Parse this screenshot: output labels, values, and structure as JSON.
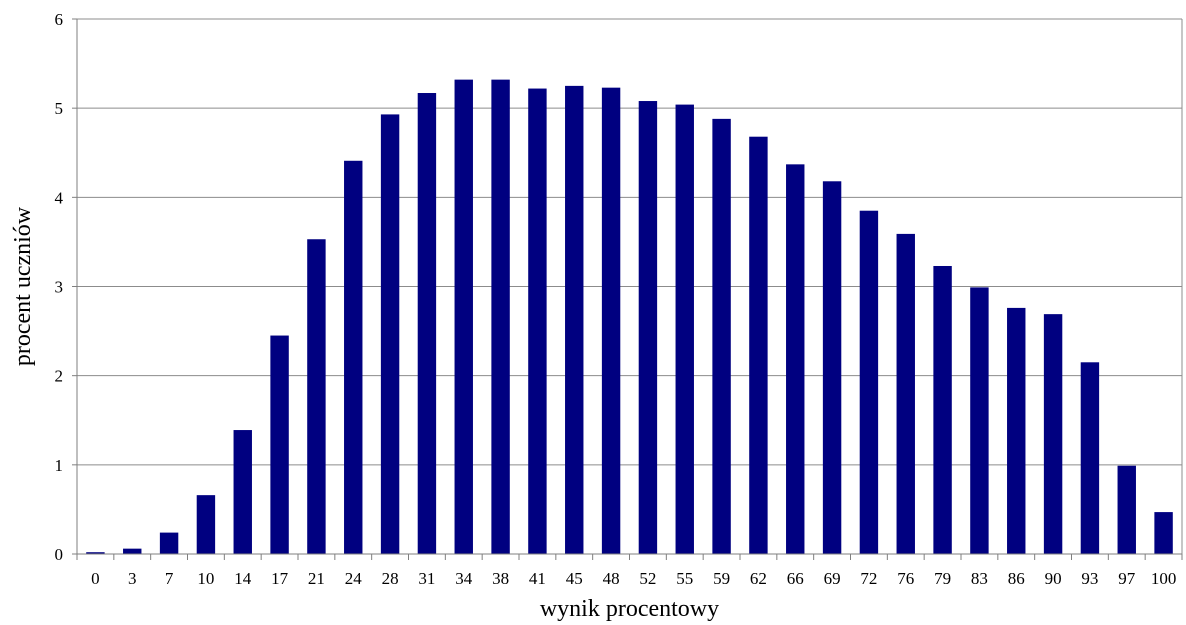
{
  "chart_data": {
    "type": "bar",
    "title": "",
    "xlabel": "wynik procentowy",
    "ylabel": "procent uczniów",
    "ylim": [
      0,
      6
    ],
    "yticks": [
      0,
      1,
      2,
      3,
      4,
      5,
      6
    ],
    "grid": true,
    "legend": "none",
    "bar_color": "#000080",
    "categories": [
      "0",
      "3",
      "7",
      "10",
      "14",
      "17",
      "21",
      "24",
      "28",
      "31",
      "34",
      "38",
      "41",
      "45",
      "48",
      "52",
      "55",
      "59",
      "62",
      "66",
      "69",
      "72",
      "76",
      "79",
      "83",
      "86",
      "90",
      "93",
      "97",
      "100"
    ],
    "values": [
      0.02,
      0.06,
      0.24,
      0.66,
      1.39,
      2.45,
      3.53,
      4.41,
      4.93,
      5.17,
      5.32,
      5.32,
      5.22,
      5.25,
      5.23,
      5.08,
      5.04,
      4.88,
      4.68,
      4.37,
      4.18,
      3.85,
      3.59,
      3.23,
      2.99,
      2.76,
      2.69,
      2.15,
      0.99,
      0.47
    ]
  }
}
